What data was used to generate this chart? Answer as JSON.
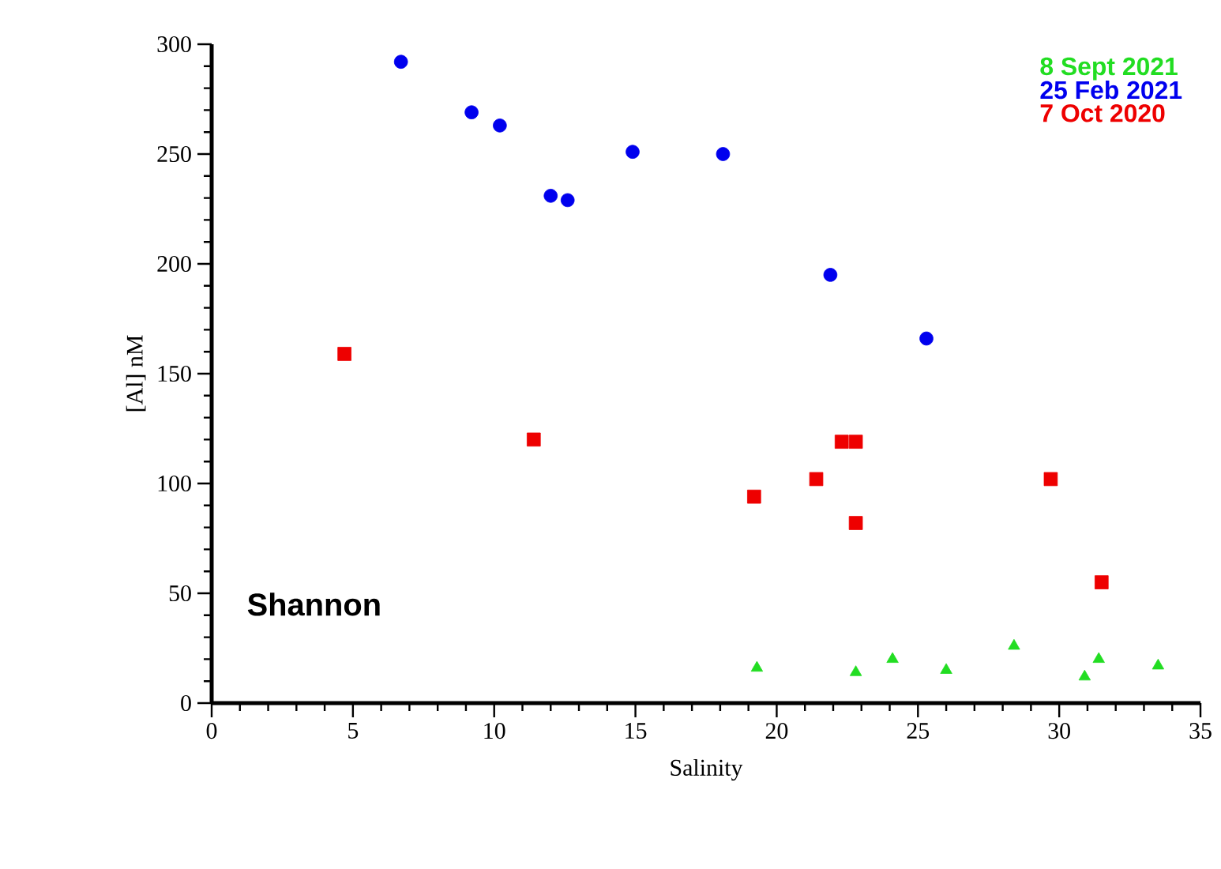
{
  "chart_data": {
    "type": "scatter",
    "xlabel": "Salinity",
    "ylabel": "[Al] nM",
    "xlim": [
      0,
      35
    ],
    "ylim": [
      0,
      300
    ],
    "xticks": [
      0,
      5,
      10,
      15,
      20,
      25,
      30,
      35
    ],
    "yticks": [
      0,
      50,
      100,
      150,
      200,
      250,
      300
    ],
    "legend": "top right",
    "annotations": [
      "Shannon"
    ],
    "series": [
      {
        "name": "8 Sept 2021",
        "color": "#22dd22",
        "marker": "triangle",
        "x": [
          19.3,
          22.8,
          24.1,
          26.0,
          28.4,
          30.9,
          31.4,
          33.5
        ],
        "values": [
          16,
          14,
          20,
          15,
          26,
          12,
          20,
          17
        ]
      },
      {
        "name": "25 Feb 2021",
        "color": "#0000ee",
        "marker": "circle",
        "x": [
          6.7,
          9.2,
          10.2,
          12.0,
          12.6,
          14.9,
          18.1,
          21.9,
          25.3
        ],
        "values": [
          292,
          269,
          263,
          231,
          229,
          251,
          250,
          195,
          166
        ]
      },
      {
        "name": "7 Oct 2020",
        "color": "#ee0000",
        "marker": "square",
        "x": [
          4.7,
          11.4,
          19.2,
          21.4,
          22.3,
          22.8,
          22.8,
          29.7,
          31.5
        ],
        "values": [
          159,
          120,
          94,
          102,
          119,
          119,
          82,
          102,
          55
        ]
      }
    ]
  }
}
